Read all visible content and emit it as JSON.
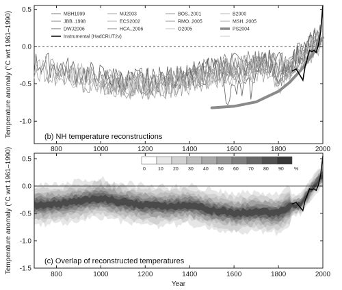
{
  "chart_data": [
    {
      "type": "line",
      "panel_label": "(b) NH temperature reconstructions",
      "xlabel": "",
      "ylabel": "Temperature anomaly (°C wrt 1961–1990)",
      "xlim": [
        700,
        2000
      ],
      "ylim": [
        -1.3,
        0.55
      ],
      "yticks": [
        -1.0,
        -0.5,
        0.0,
        0.5
      ],
      "xticks": [
        800,
        1000,
        1200,
        1400,
        1600,
        1800,
        2000
      ],
      "grid": false,
      "zero_line": "dashed",
      "legend_position": "top",
      "legend": [
        "MBH1999",
        "MJ2003",
        "BOS..2001",
        "B2000",
        "JBB..1998",
        "ECS2002",
        "RMO..2005",
        "MSH..2005",
        "DWJ2006",
        "HCA..2006",
        "O2005",
        "PS2004",
        "Instrumental (HadCRUT2v)"
      ],
      "series": [
        {
          "name": "PS2004",
          "x": [
            1500,
            1600,
            1700,
            1800,
            1850,
            1900,
            1950,
            2000
          ],
          "values": [
            -0.82,
            -0.8,
            -0.74,
            -0.6,
            -0.48,
            -0.32,
            -0.12,
            0.12
          ],
          "color": "#8a8a8a"
        },
        {
          "name": "Instrumental (HadCRUT2v)",
          "x": [
            1860,
            1880,
            1900,
            1910,
            1920,
            1940,
            1950,
            1960,
            1970,
            1980,
            1990,
            2000
          ],
          "values": [
            -0.33,
            -0.3,
            -0.4,
            -0.45,
            -0.27,
            -0.05,
            -0.07,
            -0.05,
            -0.08,
            0.02,
            0.2,
            0.55
          ],
          "color": "#000000"
        }
      ]
    },
    {
      "type": "heatmap",
      "panel_label": "(c) Overlap of reconstructed temperatures",
      "xlabel": "Year",
      "ylabel": "Temperature anomaly (°C wrt 1961–1990)",
      "xlim": [
        700,
        2000
      ],
      "ylim": [
        -1.5,
        0.6
      ],
      "yticks": [
        -1.5,
        -1.0,
        -0.5,
        0.0,
        0.5
      ],
      "xticks": [
        800,
        1000,
        1200,
        1400,
        1600,
        1800,
        2000
      ],
      "grid": false,
      "colorbar": {
        "ticks": [
          "0",
          "10",
          "20",
          "30",
          "40",
          "50",
          "60",
          "70",
          "80",
          "90"
        ],
        "unit": "%",
        "colors": [
          "#ffffff",
          "#e6e6e6",
          "#d2d2d2",
          "#bdbdbd",
          "#a8a8a8",
          "#939393",
          "#7e7e7e",
          "#676767",
          "#505050",
          "#383838"
        ]
      },
      "overlap_center": [
        {
          "x": 700,
          "y": -0.35
        },
        {
          "x": 800,
          "y": -0.33
        },
        {
          "x": 900,
          "y": -0.28
        },
        {
          "x": 1000,
          "y": -0.22
        },
        {
          "x": 1100,
          "y": -0.3
        },
        {
          "x": 1200,
          "y": -0.35
        },
        {
          "x": 1300,
          "y": -0.37
        },
        {
          "x": 1400,
          "y": -0.35
        },
        {
          "x": 1500,
          "y": -0.44
        },
        {
          "x": 1600,
          "y": -0.5
        },
        {
          "x": 1700,
          "y": -0.47
        },
        {
          "x": 1800,
          "y": -0.5
        },
        {
          "x": 1850,
          "y": -0.38
        },
        {
          "x": 1900,
          "y": -0.33
        },
        {
          "x": 1950,
          "y": -0.05
        },
        {
          "x": 2000,
          "y": 0.2
        }
      ]
    }
  ]
}
